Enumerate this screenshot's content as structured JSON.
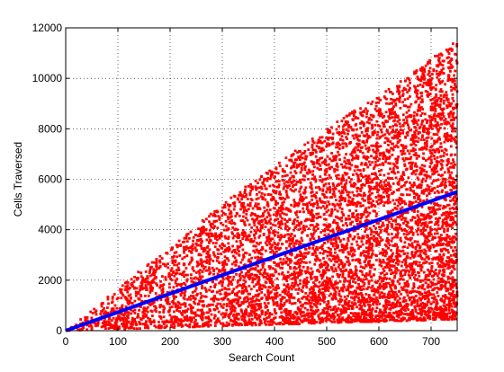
{
  "chart_data": {
    "type": "scatter",
    "title": "",
    "xlabel": "Search Count",
    "ylabel": "Cells Traversed",
    "xlim": [
      0,
      750
    ],
    "ylim": [
      0,
      12000
    ],
    "x_ticks": [
      0,
      100,
      200,
      300,
      400,
      500,
      600,
      700
    ],
    "y_ticks": [
      0,
      2000,
      4000,
      6000,
      8000,
      10000,
      12000
    ],
    "grid": true,
    "grid_style": "dotted",
    "legend": "none",
    "colors": {
      "scatter": "#ff0000",
      "fit_line": "#0000ff",
      "axes": "#000000"
    },
    "scatter_envelope": {
      "x": [
        0,
        50,
        100,
        150,
        200,
        250,
        300,
        350,
        400,
        450,
        500,
        550,
        600,
        650,
        700,
        750
      ],
      "y_min": [
        0,
        30,
        60,
        90,
        120,
        150,
        180,
        210,
        240,
        270,
        300,
        330,
        360,
        390,
        420,
        450
      ],
      "y_max": [
        0,
        800,
        1700,
        2500,
        3300,
        4200,
        5000,
        5800,
        6500,
        7300,
        8000,
        8700,
        9300,
        10000,
        10800,
        11500
      ]
    },
    "fit_line": {
      "x": [
        0,
        750
      ],
      "y": [
        0,
        5500
      ]
    }
  }
}
